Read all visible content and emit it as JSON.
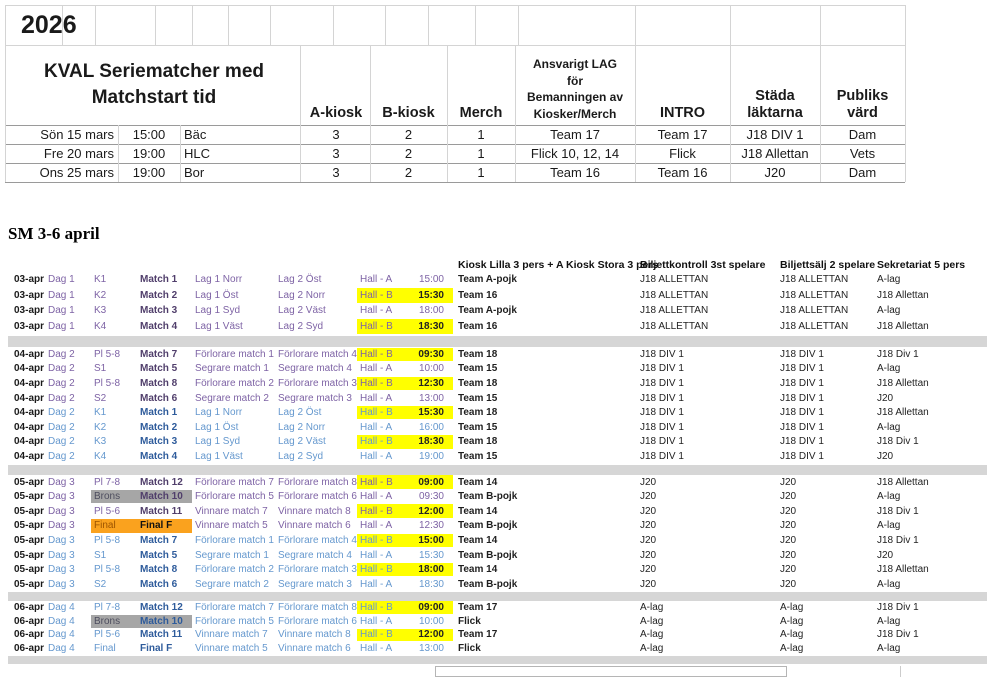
{
  "year": "2026",
  "kval": {
    "title_lines": [
      "KVAL Seriematcher med",
      "Matchstart tid"
    ],
    "columns": [
      {
        "key": "a_kiosk",
        "lines": [
          "A-kiosk"
        ]
      },
      {
        "key": "b_kiosk",
        "lines": [
          "B-kiosk"
        ]
      },
      {
        "key": "merch",
        "lines": [
          "Merch"
        ]
      },
      {
        "key": "ansvarigt",
        "lines": [
          "Ansvarigt LAG",
          "för",
          "Bemanningen av",
          "Kiosker/Merch"
        ]
      },
      {
        "key": "intro",
        "lines": [
          "INTRO"
        ]
      },
      {
        "key": "stada",
        "lines": [
          "Städa",
          "läktarna"
        ]
      },
      {
        "key": "publik",
        "lines": [
          "Publiks",
          "värd"
        ]
      }
    ],
    "rows": [
      {
        "date": "Sön 15 mars",
        "time": "15:00",
        "venue": "Bäc",
        "values": [
          "3",
          "2",
          "1",
          "Team 17",
          "Team 17",
          "J18 DIV 1",
          "Dam"
        ]
      },
      {
        "date": "Fre 20 mars",
        "time": "19:00",
        "venue": "HLC",
        "values": [
          "3",
          "2",
          "1",
          "Flick 10, 12, 14",
          "Flick",
          "J18 Allettan",
          "Vets"
        ]
      },
      {
        "date": "Ons 25 mars",
        "time": "19:00",
        "venue": "Bor",
        "values": [
          "3",
          "2",
          "1",
          "Team 16",
          "Team 16",
          "J20",
          "Dam"
        ]
      }
    ]
  },
  "sm": {
    "title": "SM 3-6 april",
    "headers": [
      "Kiosk Lilla 3 pers + A Kiosk Stora 3 pers",
      "Biljettkontroll 3st spelare",
      "Biljettsälj 2 spelare",
      "Sekretariat 5 pers"
    ],
    "days": [
      {
        "rows": [
          {
            "date": "03-apr",
            "day": "Dag 1",
            "code": "K1",
            "match": "Match 1",
            "team1": "Lag 1 Norr",
            "team2": "Lag 2 Öst",
            "hall": "Hall - A",
            "time": "15:00",
            "kiosk": "Team A-pojk",
            "bk": "J18 ALLETTAN",
            "bs": "J18 ALLETTAN",
            "sek": "A-lag",
            "theme": "purple",
            "hl": false,
            "code_bg": null
          },
          {
            "date": "03-apr",
            "day": "Dag 1",
            "code": "K2",
            "match": "Match 2",
            "team1": "Lag 1 Öst",
            "team2": "Lag 2 Norr",
            "hall": "Hall - B",
            "time": "15:30",
            "kiosk": "Team 16",
            "bk": "J18 ALLETTAN",
            "bs": "J18 ALLETTAN",
            "sek": "J18 Allettan",
            "theme": "purple",
            "hl": true,
            "code_bg": null
          },
          {
            "date": "03-apr",
            "day": "Dag 1",
            "code": "K3",
            "match": "Match 3",
            "team1": "Lag 1 Syd",
            "team2": "Lag 2 Väst",
            "hall": "Hall - A",
            "time": "18:00",
            "kiosk": "Team A-pojk",
            "bk": "J18 ALLETTAN",
            "bs": "J18 ALLETTAN",
            "sek": "A-lag",
            "theme": "purple",
            "hl": false,
            "code_bg": null
          },
          {
            "date": "03-apr",
            "day": "Dag 1",
            "code": "K4",
            "match": "Match 4",
            "team1": "Lag 1 Väst",
            "team2": "Lag 2 Syd",
            "hall": "Hall - B",
            "time": "18:30",
            "kiosk": "Team 16",
            "bk": "J18 ALLETTAN",
            "bs": "J18 ALLETTAN",
            "sek": "J18 Allettan",
            "theme": "purple",
            "hl": true,
            "code_bg": null
          }
        ]
      },
      {
        "rows": [
          {
            "date": "04-apr",
            "day": "Dag 2",
            "code": "Pl 5-8",
            "match": "Match 7",
            "team1": "Förlorare match 1",
            "team2": "Förlorare match 4",
            "hall": "Hall - B",
            "time": "09:30",
            "kiosk": "Team 18",
            "bk": "J18 DIV 1",
            "bs": "J18 DIV 1",
            "sek": "J18 Div 1",
            "theme": "purple",
            "hl": true,
            "code_bg": null
          },
          {
            "date": "04-apr",
            "day": "Dag 2",
            "code": "S1",
            "match": "Match 5",
            "team1": "Segrare match 1",
            "team2": "Segrare match 4",
            "hall": "Hall - A",
            "time": "10:00",
            "kiosk": "Team 15",
            "bk": "J18 DIV 1",
            "bs": "J18 DIV 1",
            "sek": "A-lag",
            "theme": "purple",
            "hl": false,
            "code_bg": null
          },
          {
            "date": "04-apr",
            "day": "Dag 2",
            "code": "Pl 5-8",
            "match": "Match 8",
            "team1": "Förlorare match 2",
            "team2": "Förlorare match 3",
            "hall": "Hall - B",
            "time": "12:30",
            "kiosk": "Team 18",
            "bk": "J18 DIV 1",
            "bs": "J18 DIV 1",
            "sek": "J18 Allettan",
            "theme": "purple",
            "hl": true,
            "code_bg": null
          },
          {
            "date": "04-apr",
            "day": "Dag 2",
            "code": "S2",
            "match": "Match 6",
            "team1": "Segrare match 2",
            "team2": "Segrare match 3",
            "hall": "Hall - A",
            "time": "13:00",
            "kiosk": "Team 15",
            "bk": "J18 DIV 1",
            "bs": "J18 DIV 1",
            "sek": "J20",
            "theme": "purple",
            "hl": false,
            "code_bg": null
          },
          {
            "date": "04-apr",
            "day": "Dag 2",
            "code": "K1",
            "match": "Match 1",
            "team1": "Lag 1 Norr",
            "team2": "Lag 2 Öst",
            "hall": "Hall - B",
            "time": "15:30",
            "kiosk": "Team 18",
            "bk": "J18 DIV 1",
            "bs": "J18 DIV 1",
            "sek": "J18 Allettan",
            "theme": "blue",
            "hl": true,
            "code_bg": null
          },
          {
            "date": "04-apr",
            "day": "Dag 2",
            "code": "K2",
            "match": "Match 2",
            "team1": "Lag 1 Öst",
            "team2": "Lag 2 Norr",
            "hall": "Hall - A",
            "time": "16:00",
            "kiosk": "Team 15",
            "bk": "J18 DIV 1",
            "bs": "J18 DIV 1",
            "sek": "A-lag",
            "theme": "blue",
            "hl": false,
            "code_bg": null
          },
          {
            "date": "04-apr",
            "day": "Dag 2",
            "code": "K3",
            "match": "Match 3",
            "team1": "Lag 1 Syd",
            "team2": "Lag 2 Väst",
            "hall": "Hall - B",
            "time": "18:30",
            "kiosk": "Team 18",
            "bk": "J18 DIV 1",
            "bs": "J18 DIV 1",
            "sek": "J18 Div 1",
            "theme": "blue",
            "hl": true,
            "code_bg": null
          },
          {
            "date": "04-apr",
            "day": "Dag 2",
            "code": "K4",
            "match": "Match 4",
            "team1": "Lag 1 Väst",
            "team2": "Lag 2 Syd",
            "hall": "Hall - A",
            "time": "19:00",
            "kiosk": "Team 15",
            "bk": "J18 DIV 1",
            "bs": "J18 DIV 1",
            "sek": "J20",
            "theme": "blue",
            "hl": false,
            "code_bg": null
          }
        ]
      },
      {
        "rows": [
          {
            "date": "05-apr",
            "day": "Dag 3",
            "code": "Pl 7-8",
            "match": "Match 12",
            "team1": "Förlorare match 7",
            "team2": "Förlorare match 8",
            "hall": "Hall - B",
            "time": "09:00",
            "kiosk": "Team 14",
            "bk": "J20",
            "bs": "J20",
            "sek": "J18 Allettan",
            "theme": "purple",
            "hl": true,
            "code_bg": null
          },
          {
            "date": "05-apr",
            "day": "Dag 3",
            "code": "Brons",
            "match": "Match 10",
            "team1": "Förlorare match 5",
            "team2": "Förlorare match 6",
            "hall": "Hall - A",
            "time": "09:30",
            "kiosk": "Team B-pojk",
            "bk": "J20",
            "bs": "J20",
            "sek": "A-lag",
            "theme": "purple",
            "hl": false,
            "code_bg": "gray"
          },
          {
            "date": "05-apr",
            "day": "Dag 3",
            "code": "Pl 5-6",
            "match": "Match 11",
            "team1": "Vinnare match 7",
            "team2": "Vinnare match 8",
            "hall": "Hall - B",
            "time": "12:00",
            "kiosk": "Team 14",
            "bk": "J20",
            "bs": "J20",
            "sek": "J18 Div 1",
            "theme": "purple",
            "hl": true,
            "code_bg": null
          },
          {
            "date": "05-apr",
            "day": "Dag 3",
            "code": "Final",
            "match": "Final F",
            "team1": "Vinnare match 5",
            "team2": "Vinnare match 6",
            "hall": "Hall - A",
            "time": "12:30",
            "kiosk": "Team B-pojk",
            "bk": "J20",
            "bs": "J20",
            "sek": "A-lag",
            "theme": "purple",
            "hl": false,
            "code_bg": "orange"
          },
          {
            "date": "05-apr",
            "day": "Dag 3",
            "code": "Pl 5-8",
            "match": "Match 7",
            "team1": "Förlorare match 1",
            "team2": "Förlorare match 4",
            "hall": "Hall - B",
            "time": "15:00",
            "kiosk": "Team 14",
            "bk": "J20",
            "bs": "J20",
            "sek": "J18 Div 1",
            "theme": "blue",
            "hl": true,
            "code_bg": null
          },
          {
            "date": "05-apr",
            "day": "Dag 3",
            "code": "S1",
            "match": "Match 5",
            "team1": "Segrare match 1",
            "team2": "Segrare match 4",
            "hall": "Hall - A",
            "time": "15:30",
            "kiosk": "Team B-pojk",
            "bk": "J20",
            "bs": "J20",
            "sek": "J20",
            "theme": "blue",
            "hl": false,
            "code_bg": null
          },
          {
            "date": "05-apr",
            "day": "Dag 3",
            "code": "Pl 5-8",
            "match": "Match 8",
            "team1": "Förlorare match 2",
            "team2": "Förlorare match 3",
            "hall": "Hall - B",
            "time": "18:00",
            "kiosk": "Team 14",
            "bk": "J20",
            "bs": "J20",
            "sek": "J18 Allettan",
            "theme": "blue",
            "hl": true,
            "code_bg": null
          },
          {
            "date": "05-apr",
            "day": "Dag 3",
            "code": "S2",
            "match": "Match 6",
            "team1": "Segrare match 2",
            "team2": "Segrare match 3",
            "hall": "Hall - A",
            "time": "18:30",
            "kiosk": "Team B-pojk",
            "bk": "J20",
            "bs": "J20",
            "sek": "A-lag",
            "theme": "blue",
            "hl": false,
            "code_bg": null
          }
        ]
      },
      {
        "rows": [
          {
            "date": "06-apr",
            "day": "Dag 4",
            "code": "Pl 7-8",
            "match": "Match 12",
            "team1": "Förlorare match 7",
            "team2": "Förlorare match 8",
            "hall": "Hall - B",
            "time": "09:00",
            "kiosk": "Team 17",
            "bk": "A-lag",
            "bs": "A-lag",
            "sek": "J18 Div 1",
            "theme": "blue",
            "hl": true,
            "code_bg": null
          },
          {
            "date": "06-apr",
            "day": "Dag 4",
            "code": "Brons",
            "match": "Match 10",
            "team1": "Förlorare match 5",
            "team2": "Förlorare match 6",
            "hall": "Hall - A",
            "time": "10:00",
            "kiosk": "Flick",
            "bk": "A-lag",
            "bs": "A-lag",
            "sek": "A-lag",
            "theme": "blue",
            "hl": false,
            "code_bg": "gray"
          },
          {
            "date": "06-apr",
            "day": "Dag 4",
            "code": "Pl 5-6",
            "match": "Match 11",
            "team1": "Vinnare match 7",
            "team2": "Vinnare match 8",
            "hall": "Hall - B",
            "time": "12:00",
            "kiosk": "Team 17",
            "bk": "A-lag",
            "bs": "A-lag",
            "sek": "J18 Div 1",
            "theme": "blue",
            "hl": true,
            "code_bg": null
          },
          {
            "date": "06-apr",
            "day": "Dag 4",
            "code": "Final",
            "match": "Final F",
            "team1": "Vinnare match 5",
            "team2": "Vinnare match 6",
            "hall": "Hall - A",
            "time": "13:00",
            "kiosk": "Flick",
            "bk": "A-lag",
            "bs": "A-lag",
            "sek": "A-lag",
            "theme": "blue",
            "hl": false,
            "code_bg": null
          }
        ]
      }
    ]
  },
  "colors": {
    "highlight_yellow": "#FFFF00",
    "brons_gray": "#A6A6A6",
    "final_orange": "#FAA21E",
    "purple": "#7E63A5",
    "purple_dark": "#503E6B",
    "blue": "#6598CE",
    "blue_dark": "#2E5B9B",
    "brons_text": "#4d4d5e",
    "final_text": "#9c5400",
    "separator_gray": "#D6D6D6"
  }
}
